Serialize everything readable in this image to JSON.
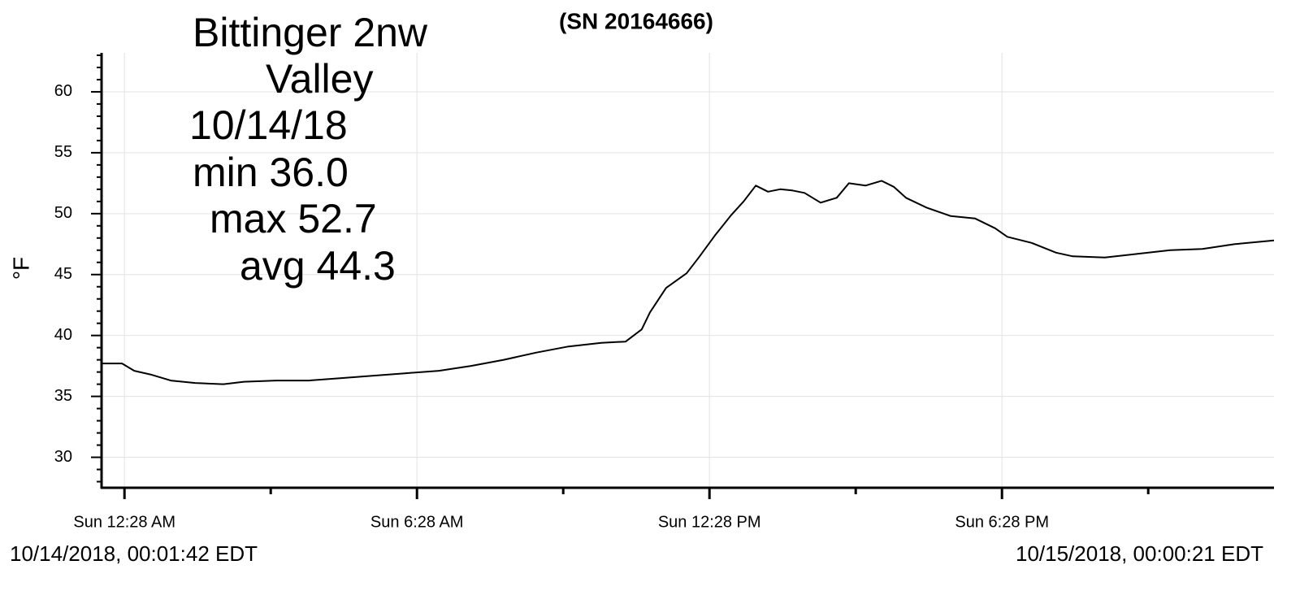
{
  "chart_data": {
    "type": "line",
    "title": "(SN 20164666)",
    "ylabel": "°F",
    "annotations": [
      "Bittinger 2nw",
      "Valley",
      "10/14/18",
      "min 36.0",
      "max 52.7",
      "avg 44.3"
    ],
    "footer_left": "10/14/2018, 00:01:42 EDT",
    "footer_right": "10/15/2018, 00:00:21 EDT",
    "color": "#000000",
    "x": [
      0,
      0.42,
      0.67,
      1.0,
      1.42,
      1.92,
      2.5,
      2.92,
      3.58,
      4.25,
      4.92,
      5.58,
      6.25,
      6.92,
      7.58,
      8.25,
      8.92,
      9.58,
      10.25,
      10.75,
      11.08,
      11.25,
      11.58,
      12.0,
      12.25,
      12.58,
      12.92,
      13.17,
      13.42,
      13.67,
      13.92,
      14.17,
      14.42,
      14.75,
      15.08,
      15.33,
      15.67,
      16.0,
      16.25,
      16.5,
      16.92,
      17.42,
      17.92,
      18.33,
      18.58,
      19.08,
      19.58,
      19.92,
      20.58,
      21.25,
      21.92,
      22.58,
      23.25,
      24.05
    ],
    "values": [
      37.7,
      37.7,
      37.1,
      36.8,
      36.3,
      36.1,
      36.0,
      36.2,
      36.3,
      36.3,
      36.5,
      36.7,
      36.9,
      37.1,
      37.5,
      38.0,
      38.6,
      39.1,
      39.4,
      39.5,
      40.5,
      41.9,
      43.9,
      45.1,
      46.4,
      48.2,
      49.9,
      51.0,
      52.3,
      51.8,
      52.0,
      51.9,
      51.7,
      50.9,
      51.3,
      52.5,
      52.3,
      52.7,
      52.2,
      51.3,
      50.5,
      49.8,
      49.6,
      48.8,
      48.1,
      47.6,
      46.8,
      46.5,
      46.4,
      46.7,
      47.0,
      47.1,
      47.5,
      47.8
    ],
    "xlim": [
      0,
      24.05
    ],
    "xticks": [
      {
        "value": 0.47,
        "label": "Sun 12:28 AM"
      },
      {
        "value": 6.47,
        "label": "Sun 6:28 AM"
      },
      {
        "value": 12.47,
        "label": "Sun 12:28 PM"
      },
      {
        "value": 18.47,
        "label": "Sun 6:28 PM"
      }
    ],
    "xminorticks": [
      3.47,
      9.47,
      15.47,
      21.47
    ],
    "ylim": [
      27.5,
      63.2
    ],
    "yticks": [
      30,
      35,
      40,
      45,
      50,
      55,
      60
    ],
    "yminorticks": [
      28,
      29,
      31,
      32,
      33,
      34,
      36,
      37,
      38,
      39,
      41,
      42,
      43,
      44,
      46,
      47,
      48,
      49,
      51,
      52,
      53,
      54,
      56,
      57,
      58,
      59,
      61,
      62,
      63
    ],
    "grid": true
  }
}
